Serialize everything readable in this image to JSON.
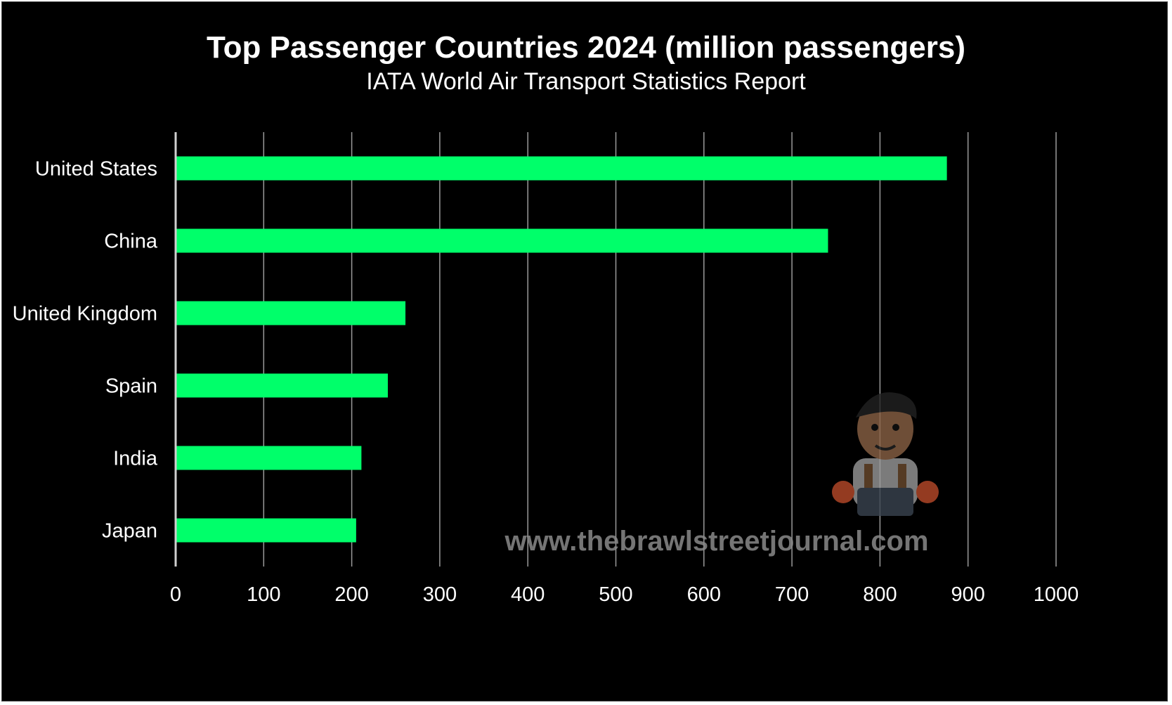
{
  "chart_data": {
    "type": "bar",
    "orientation": "horizontal",
    "title": "Top Passenger Countries 2024 (million passengers)",
    "subtitle": "IATA World Air Transport Statistics Report",
    "categories": [
      "United States",
      "China",
      "United Kingdom",
      "Spain",
      "India",
      "Japan"
    ],
    "values": [
      876,
      741,
      261,
      241,
      211,
      205
    ],
    "xlim": [
      0,
      1000
    ],
    "xticks": [
      "0",
      "100",
      "200",
      "300",
      "400",
      "500",
      "600",
      "700",
      "800",
      "900",
      "1000"
    ],
    "grid": "vertical",
    "bar_color": "#00ff6a",
    "background_color": "#000000"
  },
  "watermark": {
    "text": "www.thebrawlstreetjournal.com",
    "logo_icon": "mascot-icon"
  }
}
